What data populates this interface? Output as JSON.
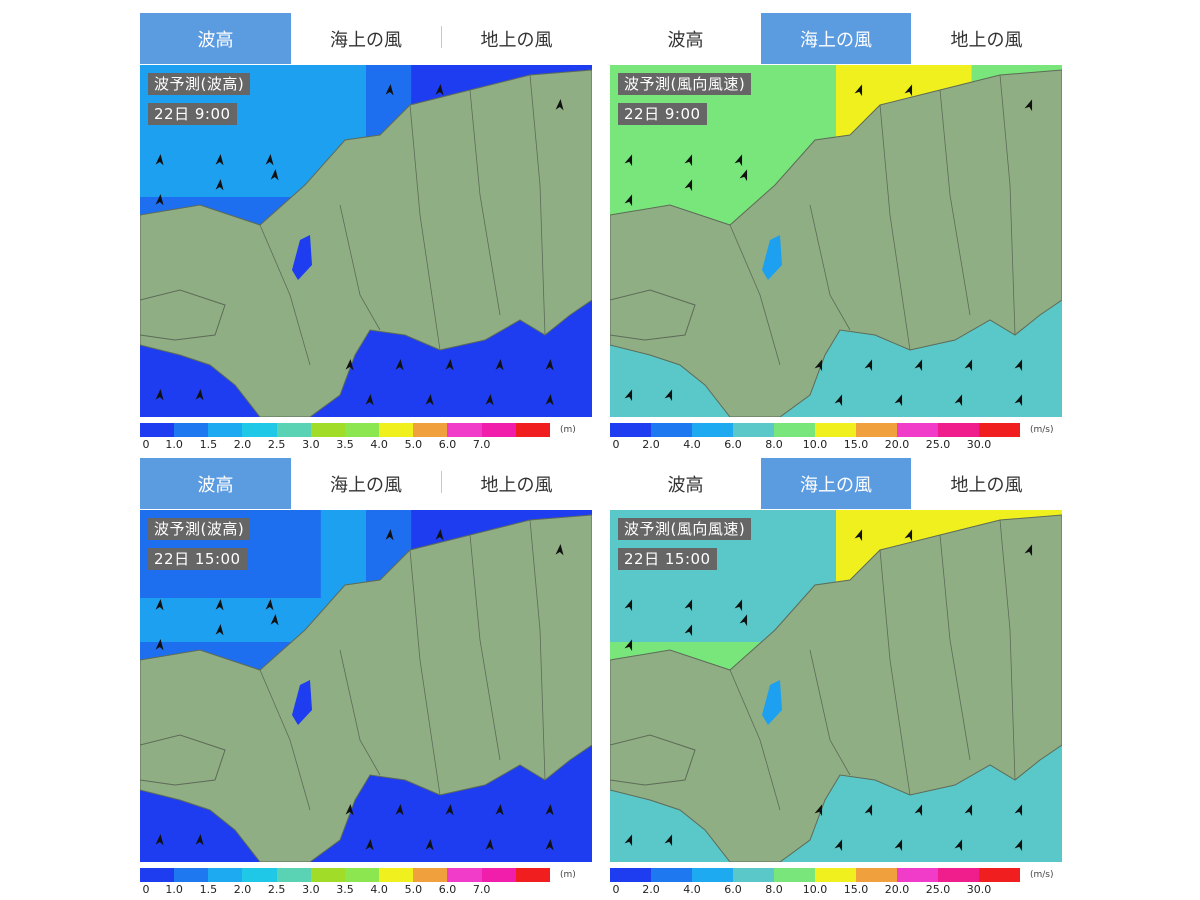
{
  "panels": [
    {
      "id": "wave-0900",
      "tabs": [
        {
          "label": "波高",
          "active": true
        },
        {
          "label": "海上の風",
          "active": false
        },
        {
          "label": "地上の風",
          "active": false
        }
      ],
      "map_title": "波予測(波高)",
      "map_time": "22日 9:00",
      "legend_kind": "wave",
      "arrow_icon": "wind-arrow-icon"
    },
    {
      "id": "wind-0900",
      "tabs": [
        {
          "label": "波高",
          "active": false
        },
        {
          "label": "海上の風",
          "active": true
        },
        {
          "label": "地上の風",
          "active": false
        }
      ],
      "map_title": "波予測(風向風速)",
      "map_time": "22日 9:00",
      "legend_kind": "wind",
      "arrow_icon": "wind-arrow-icon"
    },
    {
      "id": "wave-1500",
      "tabs": [
        {
          "label": "波高",
          "active": true
        },
        {
          "label": "海上の風",
          "active": false
        },
        {
          "label": "地上の風",
          "active": false
        }
      ],
      "map_title": "波予測(波高)",
      "map_time": "22日 15:00",
      "legend_kind": "wave",
      "arrow_icon": "wind-arrow-icon"
    },
    {
      "id": "wind-1500",
      "tabs": [
        {
          "label": "波高",
          "active": false
        },
        {
          "label": "海上の風",
          "active": true
        },
        {
          "label": "地上の風",
          "active": false
        }
      ],
      "map_title": "波予測(風向風速)",
      "map_time": "22日 15:00",
      "legend_kind": "wind",
      "arrow_icon": "wind-arrow-icon"
    }
  ],
  "legends": {
    "wave": {
      "unit": "(m)",
      "ticks": [
        "0",
        "1.0",
        "1.5",
        "2.0",
        "2.5",
        "3.0",
        "3.5",
        "4.0",
        "5.0",
        "6.0",
        "7.0"
      ],
      "colors": [
        "#1e3cf0",
        "#1e78f0",
        "#1eaaf0",
        "#1ec8e6",
        "#5ad2b4",
        "#a0dc28",
        "#8ce650",
        "#f0f01e",
        "#f0a03c",
        "#f03cc8",
        "#f01eaa",
        "#f01e1e"
      ]
    },
    "wind": {
      "unit": "(m/s)",
      "ticks": [
        "0",
        "2.0",
        "4.0",
        "6.0",
        "8.0",
        "10.0",
        "15.0",
        "20.0",
        "25.0",
        "30.0"
      ],
      "colors": [
        "#1e3cf0",
        "#1e78f0",
        "#1eaaf0",
        "#5ac8c8",
        "#78e67a",
        "#f0f01e",
        "#f0a03c",
        "#f03cc8",
        "#f01e8c",
        "#f01e1e"
      ]
    }
  },
  "colors": {
    "tab_active": "#5b9be0",
    "land": "#8fae84",
    "label_bg": "#666666"
  }
}
